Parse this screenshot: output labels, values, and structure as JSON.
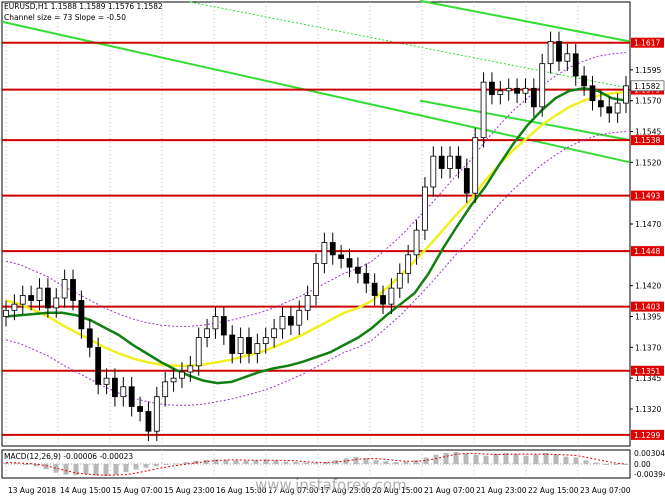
{
  "header": {
    "symbol_line": "EURUSD,H1  1.1588 1.1589 1.1576 1.1582",
    "channel_line": "Channel size = 73 Slope = -0.50"
  },
  "macd": {
    "label": "MACD(12,26,9) -0.00006 -0.00023",
    "axis_ticks": [
      "0.00304",
      "0.00",
      "-0.003944"
    ]
  },
  "watermark": "www.instaforex.com",
  "colors": {
    "background": "#ffffff",
    "candle": "#000000",
    "level_line": "#cc0000",
    "level_label_bg": "#e00000",
    "channel": "#33dd33",
    "ma_fast": "#108010",
    "ma_slow": "#f0f020",
    "bollinger": "#9933cc",
    "macd_hist": "#b8b8b8",
    "macd_signal": "#dd0000"
  },
  "chart_data": {
    "type": "candlestick",
    "symbol": "EURUSD",
    "timeframe": "H1",
    "ylim": [
      1.129,
      1.165
    ],
    "y_ticks": [
      "1.1595",
      "1.1570",
      "1.1545",
      "1.1520",
      "1.1470",
      "1.1420",
      "1.1395",
      "1.1370",
      "1.1345",
      "1.1320"
    ],
    "x_ticks": [
      "13 Aug 2018",
      "14 Aug 15:00",
      "15 Aug 07:00",
      "15 Aug 23:00",
      "16 Aug 15:00",
      "17 Aug 07:00",
      "17 Aug 23:00",
      "20 Aug 15:00",
      "21 Aug 07:00",
      "21 Aug 23:00",
      "22 Aug 15:00",
      "23 Aug 07:00"
    ],
    "current_price": "1.1582",
    "levels": [
      "1.1617",
      "1.1579",
      "1.1538",
      "1.1493",
      "1.1448",
      "1.1403",
      "1.1351",
      "1.1299"
    ],
    "closes": [
      1.14,
      1.1405,
      1.1412,
      1.1408,
      1.1418,
      1.1402,
      1.141,
      1.1425,
      1.1408,
      1.1385,
      1.137,
      1.134,
      1.1345,
      1.133,
      1.1338,
      1.1322,
      1.1318,
      1.1302,
      1.133,
      1.1342,
      1.1345,
      1.135,
      1.1355,
      1.1378,
      1.1385,
      1.1395,
      1.138,
      1.1365,
      1.1378,
      1.1365,
      1.1373,
      1.1378,
      1.1385,
      1.1395,
      1.1388,
      1.14,
      1.1412,
      1.1438,
      1.1455,
      1.1445,
      1.1442,
      1.1435,
      1.143,
      1.1422,
      1.1412,
      1.1405,
      1.1418,
      1.143,
      1.1445,
      1.1465,
      1.15,
      1.1525,
      1.1515,
      1.1525,
      1.1515,
      1.1495,
      1.154,
      1.1585,
      1.1575,
      1.1578,
      1.158,
      1.1576,
      1.158,
      1.1565,
      1.16,
      1.1618,
      1.1602,
      1.1608,
      1.159,
      1.1582,
      1.157,
      1.1565,
      1.156,
      1.1568,
      1.1582
    ],
    "ma_fast": [
      1.1395,
      1.1396,
      1.1397,
      1.1398,
      1.1398,
      1.1396,
      1.1392,
      1.1386,
      1.138,
      1.1372,
      1.1365,
      1.1358,
      1.1352,
      1.1347,
      1.1343,
      1.1341,
      1.1342,
      1.1346,
      1.135,
      1.1353,
      1.1355,
      1.1358,
      1.1362,
      1.1366,
      1.1372,
      1.1378,
      1.1386,
      1.1396,
      1.1405,
      1.1414,
      1.143,
      1.145,
      1.1468,
      1.1485,
      1.15,
      1.1518,
      1.1535,
      1.155,
      1.1562,
      1.1572,
      1.1578,
      1.158,
      1.1578,
      1.1572,
      1.157
    ],
    "ma_slow": [
      1.1408,
      1.1405,
      1.14,
      1.1395,
      1.1388,
      1.1382,
      1.1376,
      1.137,
      1.1365,
      1.1361,
      1.1358,
      1.1356,
      1.1355,
      1.1355,
      1.1356,
      1.1358,
      1.136,
      1.1363,
      1.1366,
      1.137,
      1.1375,
      1.138,
      1.1386,
      1.1392,
      1.1398,
      1.1402,
      1.1408,
      1.1418,
      1.1428,
      1.144,
      1.1452,
      1.1465,
      1.1478,
      1.149,
      1.1505,
      1.1518,
      1.153,
      1.154,
      1.155,
      1.1558,
      1.1565,
      1.157,
      1.1574,
      1.1576,
      1.1577
    ],
    "macd_hist": [
      0.0003,
      0.0002,
      -0.0001,
      -0.0005,
      -0.0011,
      -0.0019,
      -0.0023,
      -0.0024,
      -0.0022,
      -0.0025,
      -0.0026,
      -0.0023,
      -0.0018,
      -0.0012,
      -0.0008,
      -0.0005,
      -0.0002,
      0.0001,
      0.0004,
      0.0007,
      0.0009,
      0.001,
      0.0009,
      0.0008,
      0.0007,
      0.0008,
      0.001,
      0.0008,
      0.0005,
      0.0004,
      0.0003,
      0.0002,
      0.0004,
      0.0008,
      0.0012,
      0.0015,
      0.0012,
      0.0008,
      0.0006,
      0.0004,
      0.0005,
      0.0008,
      0.0014,
      0.002,
      0.0024,
      0.0026,
      0.0022,
      0.002,
      0.0018,
      0.0022,
      0.0024,
      0.0022,
      0.0018,
      0.002,
      0.0024,
      0.002,
      0.0016,
      0.0014,
      0.0008,
      0.0003,
      -0.0001,
      -0.0002,
      -0.0001
    ]
  }
}
